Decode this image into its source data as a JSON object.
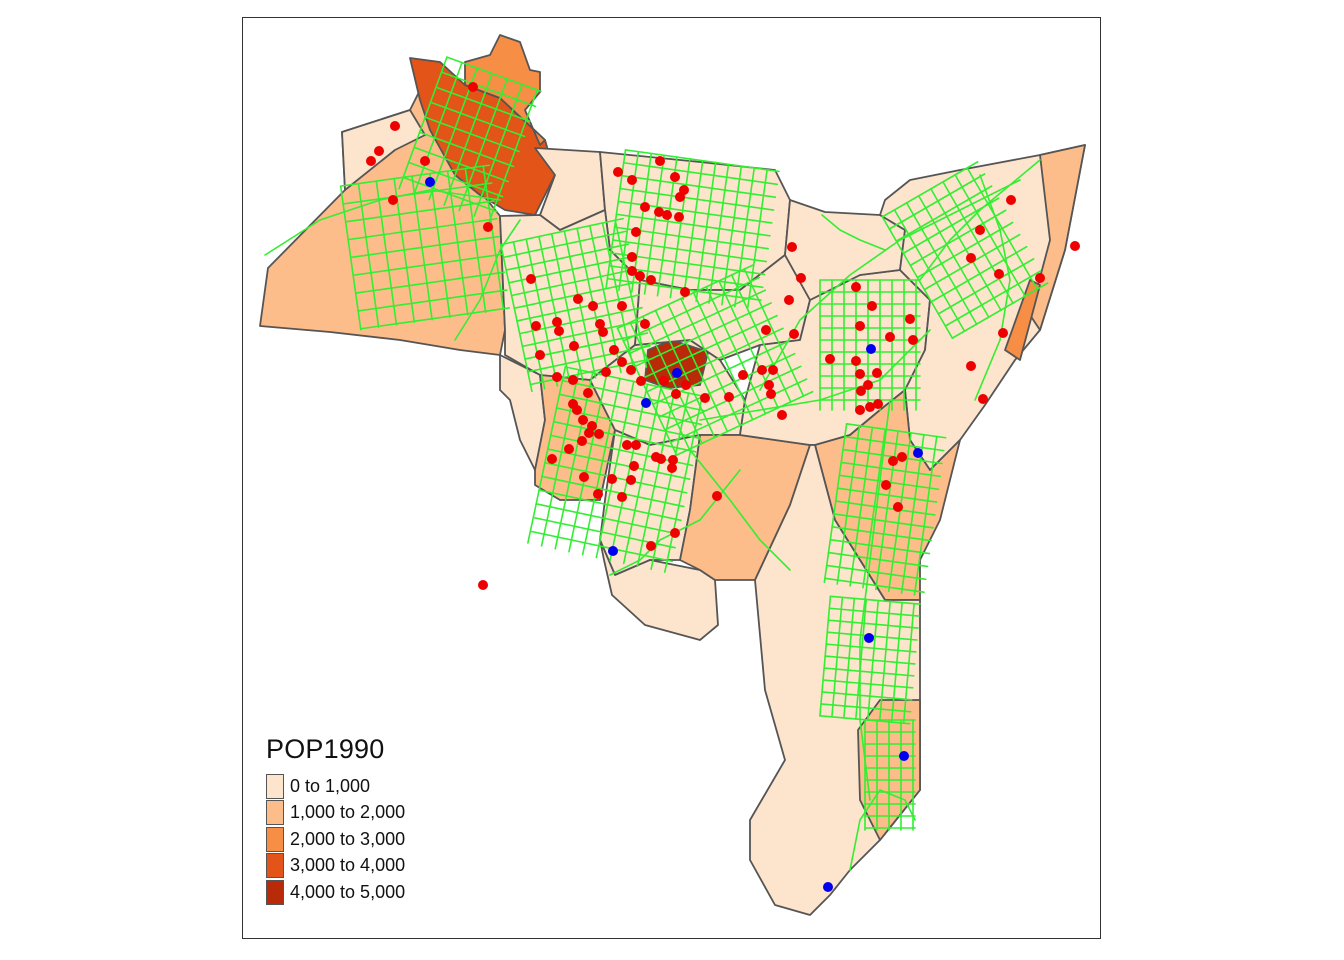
{
  "map": {
    "legend_title": "POP1990",
    "classes": [
      {
        "label": "0 to 1,000",
        "color": "#fde4cc"
      },
      {
        "label": "1,000 to 2,000",
        "color": "#fcbd8a"
      },
      {
        "label": "2,000 to 3,000",
        "color": "#f78e45"
      },
      {
        "label": "3,000 to 4,000",
        "color": "#e35419"
      },
      {
        "label": "4,000 to 5,000",
        "color": "#b82a08"
      }
    ],
    "colors": {
      "roads": "#33ee33",
      "red_points": "#ee0000",
      "blue_points": "#0000ee",
      "tract_border": "#555555"
    },
    "layers": [
      "census-tracts",
      "roads",
      "red-points",
      "blue-points"
    ]
  }
}
